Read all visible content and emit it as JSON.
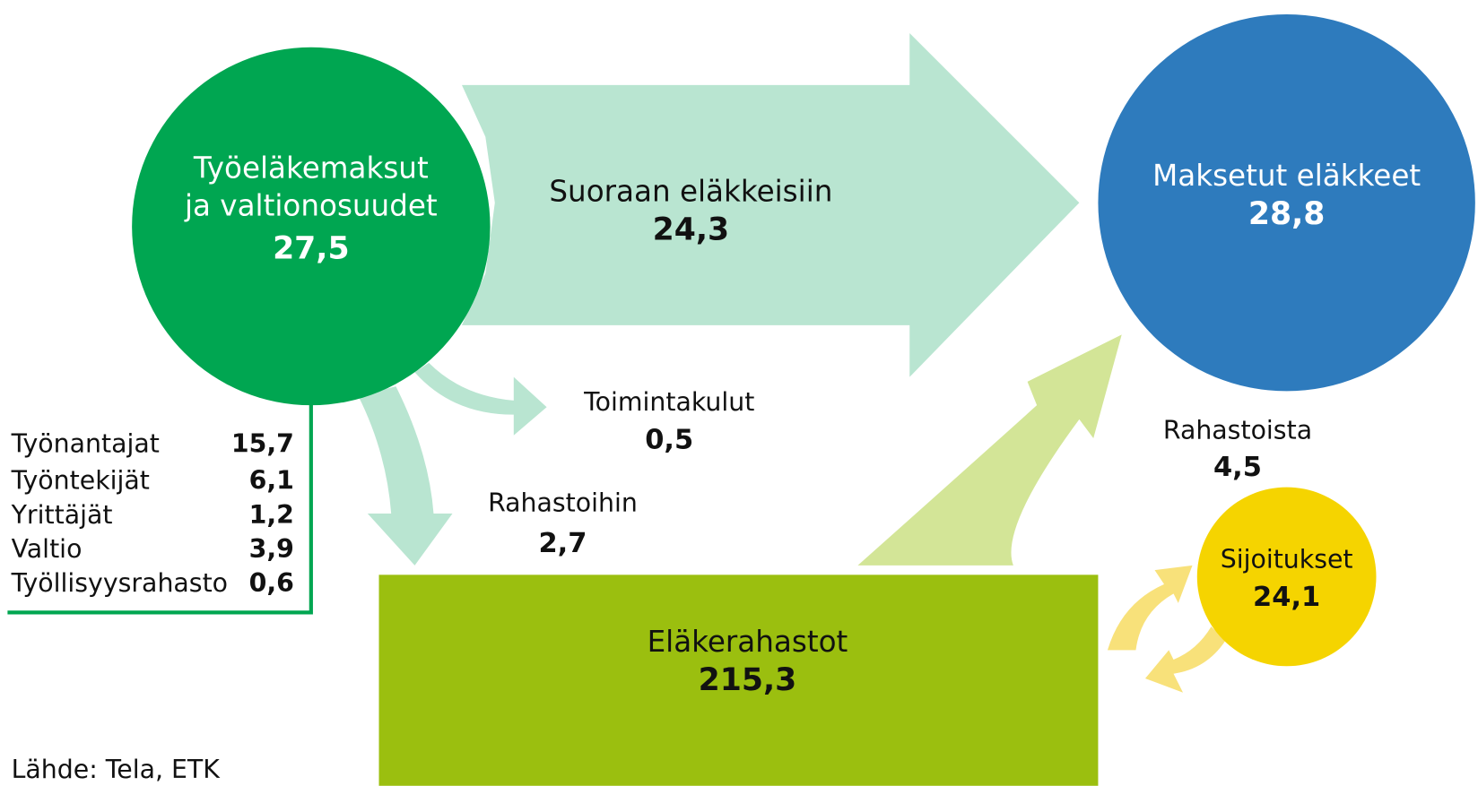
{
  "nodes": [
    {
      "label": [
        "Työeläkemaksut",
        "ja valtionosuudet"
      ],
      "value": "27,5"
    },
    {
      "label": [
        "Suoraan eläkkeisiin"
      ],
      "value": "24,3"
    },
    {
      "label": [
        "Maksetut eläkkeet"
      ],
      "value": "28,8"
    },
    {
      "label": [
        "Toimintakulut"
      ],
      "value": "0,5"
    },
    {
      "label": [
        "Rahastoihin"
      ],
      "value": "2,7"
    },
    {
      "label": [
        "Eläkerahastot"
      ],
      "value": "215,3"
    },
    {
      "label": [
        "Rahastoista"
      ],
      "value": "4,5"
    },
    {
      "label": [
        "Sijoitukset"
      ],
      "value": "24,1"
    }
  ],
  "table": {
    "rows": [
      [
        "Työnantajat",
        "15,7"
      ],
      [
        "Työntekijät",
        "6,1"
      ],
      [
        "Yrittäjät",
        "1,2"
      ],
      [
        "Valtio",
        "3,9"
      ],
      [
        "Työllisyysrahasto",
        "0,6"
      ]
    ]
  },
  "source": "Lähde: Tela, ETK"
}
